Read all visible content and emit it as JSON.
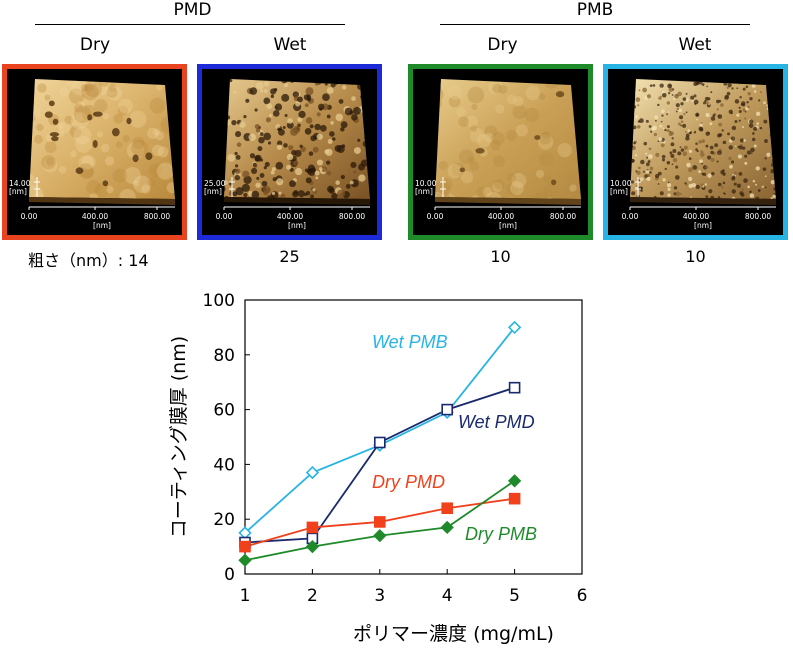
{
  "header": {
    "groups": [
      {
        "title": "PMD",
        "states": [
          "Dry",
          "Wet"
        ]
      },
      {
        "title": "PMB",
        "states": [
          "Dry",
          "Wet"
        ]
      }
    ]
  },
  "panels": [
    {
      "id": "pmd-dry",
      "border_color": "#e8441f",
      "z_label": "14.00",
      "z_unit": "[nm]",
      "x_ticks": [
        "0.00",
        "400.00",
        "800.00"
      ],
      "x_unit": "[nm]",
      "roughness": "14",
      "surface": "smooth-pits",
      "palette": [
        "#5a3a14",
        "#b98a3c",
        "#d9b068",
        "#f0d59a"
      ]
    },
    {
      "id": "pmd-wet",
      "border_color": "#1c2ad8",
      "z_label": "25.00",
      "z_unit": "[nm]",
      "x_ticks": [
        "0.00",
        "400.00",
        "800.00"
      ],
      "x_unit": "[nm]",
      "roughness": "25",
      "surface": "porous",
      "palette": [
        "#2b1a08",
        "#7a5224",
        "#b58a4a",
        "#e6c98d"
      ]
    },
    {
      "id": "pmb-dry",
      "border_color": "#1f8a2a",
      "z_label": "10.00",
      "z_unit": "[nm]",
      "x_ticks": [
        "0.00",
        "400.00",
        "800.00"
      ],
      "x_unit": "[nm]",
      "roughness": "10",
      "surface": "smooth",
      "palette": [
        "#6b4a1c",
        "#b48a42",
        "#caa056",
        "#e8cc8c"
      ]
    },
    {
      "id": "pmb-wet",
      "border_color": "#27b4e4",
      "z_label": "10.00",
      "z_unit": "[nm]",
      "x_ticks": [
        "0.00",
        "400.00",
        "800.00"
      ],
      "x_unit": "[nm]",
      "roughness": "10",
      "surface": "grainy",
      "palette": [
        "#3a2610",
        "#8a6432",
        "#bf9a5c",
        "#f3e2b2"
      ]
    }
  ],
  "roughness_label": "粗さ（nm）: ",
  "chart_data": {
    "type": "line",
    "xlabel": "ポリマー濃度 (mg/mL)",
    "ylabel": "コーティング膜厚 (nm)",
    "xlim": [
      1,
      6
    ],
    "ylim": [
      0,
      100
    ],
    "x_ticks": [
      1,
      2,
      3,
      4,
      5,
      6
    ],
    "y_ticks": [
      0,
      20,
      40,
      60,
      80,
      100
    ],
    "grid": false,
    "series": [
      {
        "name": "Wet PMB",
        "color": "#27b4e4",
        "marker": "diamond-open",
        "x": [
          1,
          2,
          3,
          4,
          5
        ],
        "y": [
          15,
          37,
          47,
          59,
          90
        ]
      },
      {
        "name": "Wet PMD",
        "color": "#1a2a6e",
        "marker": "square-open",
        "x": [
          1,
          2,
          3,
          4,
          5
        ],
        "y": [
          11.5,
          13,
          48,
          60,
          68
        ]
      },
      {
        "name": "Dry PMD",
        "color": "#f0401c",
        "marker": "square-filled",
        "x": [
          1,
          2,
          3,
          4,
          5
        ],
        "y": [
          10,
          17,
          19,
          24,
          27.5
        ]
      },
      {
        "name": "Dry PMB",
        "color": "#1f8a2a",
        "marker": "diamond-filled",
        "x": [
          1,
          2,
          3,
          4,
          5
        ],
        "y": [
          5,
          10,
          14,
          17,
          34
        ]
      }
    ]
  }
}
